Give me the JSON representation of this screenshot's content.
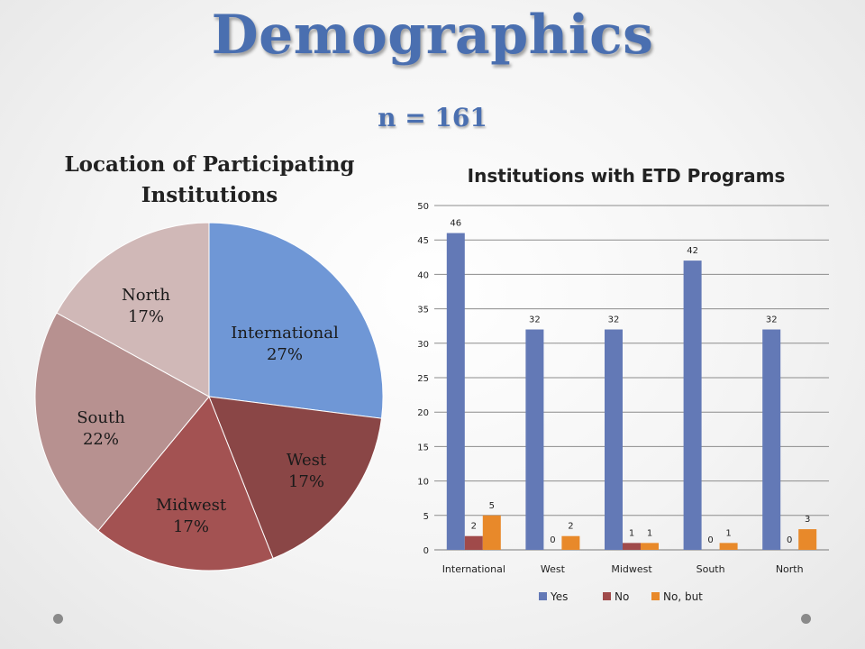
{
  "slide": {
    "title": "Demographics",
    "subtitle": "n = 161"
  },
  "chart_data": [
    {
      "type": "pie",
      "title": "Location of Participating Institutions",
      "slices": [
        {
          "label": "International",
          "percent_label": "27%",
          "value": 27,
          "color": "#6f97d6"
        },
        {
          "label": "West",
          "percent_label": "17%",
          "value": 17,
          "color": "#8a4646"
        },
        {
          "label": "Midwest",
          "percent_label": "17%",
          "value": 17,
          "color": "#a35252"
        },
        {
          "label": "South",
          "percent_label": "22%",
          "value": 22,
          "color": "#b79190"
        },
        {
          "label": "North",
          "percent_label": "17%",
          "value": 17,
          "color": "#d0b8b7"
        }
      ]
    },
    {
      "type": "bar",
      "title": "Institutions with ETD Programs",
      "categories": [
        "International",
        "West",
        "Midwest",
        "South",
        "North"
      ],
      "series": [
        {
          "name": "Yes",
          "values": [
            46,
            32,
            32,
            42,
            32
          ],
          "color": "#6379b6"
        },
        {
          "name": "No",
          "values": [
            2,
            0,
            1,
            0,
            0
          ],
          "color": "#a04a4a"
        },
        {
          "name": "No, but",
          "values": [
            5,
            2,
            1,
            1,
            3
          ],
          "color": "#e8892a"
        }
      ],
      "ylim": [
        0,
        50
      ],
      "yticks": [
        0,
        5,
        10,
        15,
        20,
        25,
        30,
        35,
        40,
        45,
        50
      ],
      "grid": true,
      "legend": "bottom"
    }
  ]
}
